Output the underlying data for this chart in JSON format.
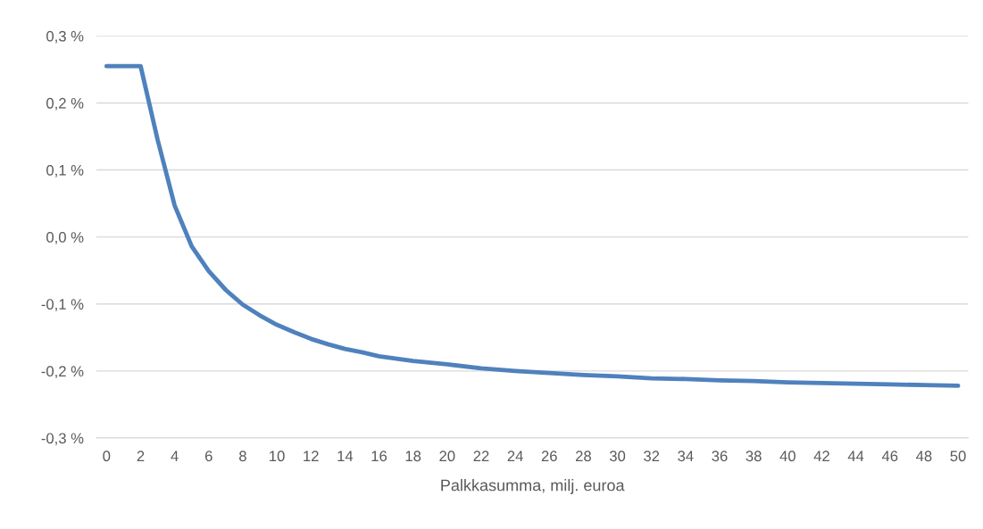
{
  "chart_data": {
    "type": "line",
    "xlabel": "Palkkasumma, milj. euroa",
    "series": [
      {
        "color": "#4f81bd",
        "x": [
          0,
          1,
          2,
          3,
          4,
          5,
          6,
          7,
          8,
          9,
          10,
          11,
          12,
          13,
          14,
          15,
          16,
          18,
          20,
          22,
          24,
          26,
          28,
          30,
          32,
          34,
          36,
          38,
          40,
          42,
          44,
          46,
          48,
          50
        ],
        "values": [
          0.255,
          0.255,
          0.255,
          0.145,
          0.047,
          -0.014,
          -0.051,
          -0.079,
          -0.101,
          -0.117,
          -0.131,
          -0.142,
          -0.152,
          -0.16,
          -0.167,
          -0.172,
          -0.178,
          -0.185,
          -0.19,
          -0.196,
          -0.2,
          -0.203,
          -0.206,
          -0.208,
          -0.211,
          -0.212,
          -0.214,
          -0.215,
          -0.217,
          -0.218,
          -0.219,
          -0.22,
          -0.221,
          -0.222
        ]
      }
    ],
    "xlim": [
      -0.6,
      50.6
    ],
    "xticks": [
      0,
      2,
      4,
      6,
      8,
      10,
      12,
      14,
      16,
      18,
      20,
      22,
      24,
      26,
      28,
      30,
      32,
      34,
      36,
      38,
      40,
      42,
      44,
      46,
      48,
      50
    ],
    "ylim": [
      -0.3,
      0.3
    ],
    "yticks": [
      {
        "value": -0.3,
        "label": "-0,3 %"
      },
      {
        "value": -0.2,
        "label": "-0,2 %"
      },
      {
        "value": -0.1,
        "label": "-0,1 %"
      },
      {
        "value": 0.0,
        "label": "0,0 %"
      },
      {
        "value": 0.1,
        "label": "0,1 %"
      },
      {
        "value": 0.2,
        "label": "0,2 %"
      },
      {
        "value": 0.3,
        "label": "0,3 %"
      }
    ],
    "grid": "y",
    "marker": "none",
    "line_style": "solid",
    "legend": false
  }
}
